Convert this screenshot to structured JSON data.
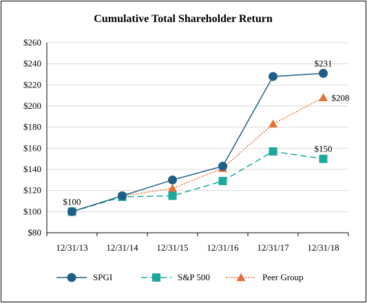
{
  "chart_data": {
    "type": "line",
    "title": "Cumulative Total Shareholder Return",
    "xlabel": "",
    "ylabel": "",
    "categories": [
      "12/31/13",
      "12/31/14",
      "12/31/15",
      "12/31/16",
      "12/31/17",
      "12/31/18"
    ],
    "ylim": [
      80,
      260
    ],
    "yticks": [
      80,
      100,
      120,
      140,
      160,
      180,
      200,
      220,
      240,
      260
    ],
    "ytick_labels": [
      "$80",
      "$100",
      "$120",
      "$140",
      "$160",
      "$180",
      "$200",
      "$220",
      "$240",
      "$260"
    ],
    "grid": true,
    "legend_position": "bottom",
    "series": [
      {
        "name": "SPGI",
        "values": [
          100,
          115,
          130,
          143,
          228,
          231
        ],
        "color": "#1f5f86",
        "marker": "circle",
        "line_style": "solid"
      },
      {
        "name": "S&P 500",
        "values": [
          100,
          114,
          115,
          129,
          157,
          150
        ],
        "color": "#1aa89a",
        "marker": "square",
        "line_style": "dashed"
      },
      {
        "name": "Peer Group",
        "values": [
          100,
          115,
          122,
          141,
          183,
          208
        ],
        "color": "#e36f32",
        "marker": "triangle",
        "line_style": "dotted"
      }
    ],
    "annotations": [
      {
        "text": "$100",
        "category": "12/31/13",
        "value": 100,
        "placement": "above"
      },
      {
        "text": "$231",
        "category": "12/31/18",
        "value": 231,
        "placement": "above"
      },
      {
        "text": "$208",
        "category": "12/31/18",
        "value": 208,
        "placement": "right"
      },
      {
        "text": "$150",
        "category": "12/31/18",
        "value": 150,
        "placement": "above"
      }
    ]
  }
}
